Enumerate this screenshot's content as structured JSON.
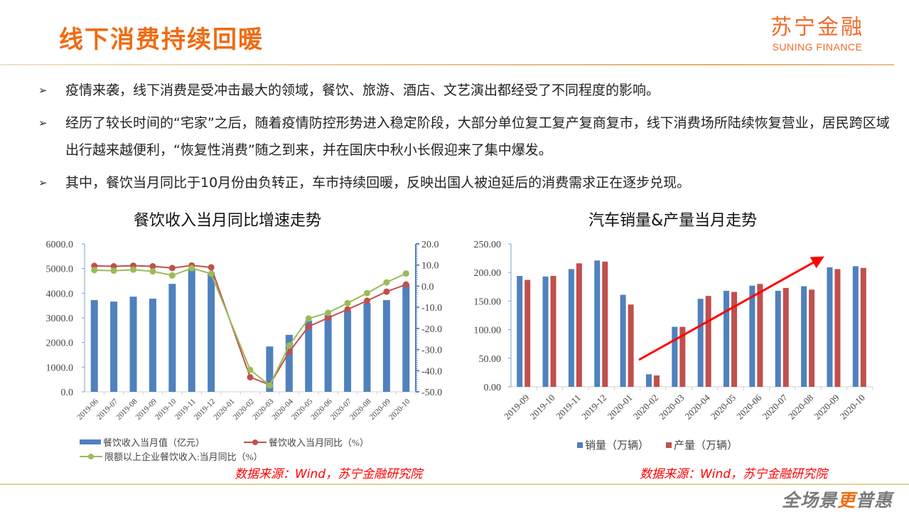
{
  "header": {
    "title": "线下消费持续回暖",
    "logo_cn": "苏宁金融",
    "logo_en": "SUNING FINANCE"
  },
  "bullets": [
    {
      "mark": "➢",
      "text": "疫情来袭，线下消费是受冲击最大的领域，餐饮、旅游、酒店、文艺演出都经受了不同程度的影响。"
    },
    {
      "mark": "➢",
      "text": "经历了较长时间的“宅家”之后，随着疫情防控形势进入稳定阶段，大部分单位复工复产复商复市，线下消费场所陆续恢复营业，居民跨区域出行越来越便利，“恢复性消费”随之到来，并在国庆中秋小长假迎来了集中爆发。"
    },
    {
      "mark": "➢",
      "text": "其中，餐饮当月同比于10月份由负转正，车市持续回暖，反映出国人被迫延后的消费需求正在逐步兑现。"
    }
  ],
  "chart_data": [
    {
      "type": "bar+line",
      "title": "餐饮收入当月同比增速走势",
      "categories": [
        "2019-06",
        "2019-07",
        "2019-08",
        "2019-09",
        "2019-10",
        "2019-11",
        "2019-12",
        "2020-01",
        "2020-02",
        "2020-03",
        "2020-04",
        "2020-05",
        "2020-06",
        "2020-07",
        "2020-08",
        "2020-09",
        "2020-10"
      ],
      "series": [
        {
          "name": "餐饮收入当月值（亿元）",
          "type": "bar",
          "axis": "left",
          "color": "#4f81bd",
          "values": [
            3720,
            3660,
            3860,
            3780,
            4380,
            4990,
            4850,
            null,
            null,
            1840,
            2310,
            2890,
            3110,
            3290,
            3600,
            3720,
            4350
          ]
        },
        {
          "name": "餐饮收入当月同比（%）",
          "type": "line",
          "axis": "right",
          "color": "#c0504d",
          "values": [
            9.6,
            9.4,
            9.7,
            9.4,
            8.6,
            9.8,
            8.9,
            null,
            -43.1,
            -46.7,
            -31.1,
            -19.1,
            -15.0,
            -11.0,
            -6.9,
            -2.6,
            0.8
          ]
        },
        {
          "name": "限额以上企业餐饮收入:当月同比（%）",
          "type": "line",
          "axis": "right",
          "color": "#9bbb59",
          "values": [
            7.6,
            7.3,
            7.8,
            7.0,
            5.1,
            8.5,
            5.9,
            null,
            -39.6,
            -47.0,
            -28.1,
            -15.3,
            -12.6,
            -8.0,
            -3.3,
            1.8,
            6.0
          ]
        }
      ],
      "y_left": {
        "ticks": [
          "6000.0",
          "5000.0",
          "4000.0",
          "3000.0",
          "2000.0",
          "1000.0",
          "0.0"
        ],
        "range": [
          0,
          6000
        ]
      },
      "y_right": {
        "ticks": [
          "20.0",
          "10.0",
          "0.0",
          "-10.0",
          "-20.0",
          "-30.0",
          "-40.0",
          "-50.0"
        ],
        "range": [
          -50,
          20
        ]
      },
      "legend_position": "bottom",
      "grid": false
    },
    {
      "type": "bar",
      "title": "汽车销量&产量当月走势",
      "categories": [
        "2019-09",
        "2019-10",
        "2019-11",
        "2019-12",
        "2020-01",
        "2020-02",
        "2020-03",
        "2020-04",
        "2020-05",
        "2020-06",
        "2020-07",
        "2020-08",
        "2020-09",
        "2020-10"
      ],
      "series": [
        {
          "name": "销量（万辆）",
          "color": "#4f81bd",
          "values": [
            194,
            193,
            206,
            221,
            161,
            22,
            105,
            154,
            168,
            177,
            168,
            176,
            209,
            211
          ]
        },
        {
          "name": "产量（万辆）",
          "color": "#c0504d",
          "values": [
            187,
            194,
            216,
            219,
            144,
            20,
            105,
            159,
            166,
            180,
            173,
            170,
            206,
            208
          ]
        }
      ],
      "y": {
        "ticks": [
          "250.00",
          "200.00",
          "150.00",
          "100.00",
          "50.00",
          "0.00"
        ],
        "range": [
          0,
          250
        ]
      },
      "annotation": "red upward trend arrow from 2020-02 to 2020-10",
      "legend_position": "bottom",
      "grid": false
    }
  ],
  "charts": {
    "left_title": "餐饮收入当月同比增速走势",
    "right_title": "汽车销量&产量当月走势",
    "left_legend": [
      "餐饮收入当月值（亿元）",
      "餐饮收入当月同比（%）",
      "限额以上企业餐饮收入:当月同比（%）"
    ],
    "right_legend": [
      "销量（万辆）",
      "产量（万辆）"
    ],
    "source": "数据来源：Wind，苏宁金融研究院"
  },
  "footer": {
    "slogan_a": "全场景",
    "slogan_check": "更",
    "slogan_b": "普惠"
  },
  "colors": {
    "brand_orange": "#f06b11",
    "bar_blue": "#4f81bd",
    "bar_red": "#c0504d",
    "line_green": "#9bbb59",
    "source_red": "#ff0000"
  }
}
